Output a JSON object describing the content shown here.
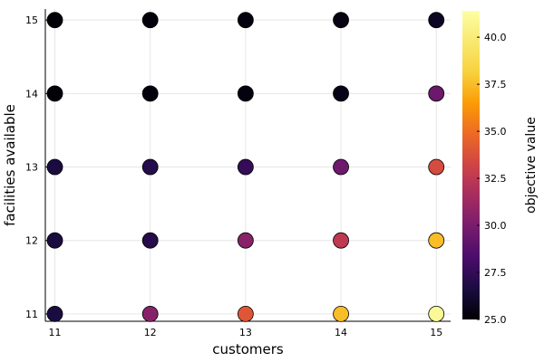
{
  "chart_data": {
    "type": "scatter",
    "title": "",
    "xlabel": "customers",
    "ylabel": "facilities available",
    "colorbar_label": "objective value",
    "xlim": [
      10.9,
      15.15
    ],
    "ylim": [
      10.9,
      15.15
    ],
    "xticks": [
      "11",
      "12",
      "13",
      "14",
      "15"
    ],
    "yticks": [
      "11",
      "12",
      "13",
      "14",
      "15"
    ],
    "clim": [
      25.0,
      41.4
    ],
    "cticks": [
      "25.0",
      "27.5",
      "30.0",
      "32.5",
      "35.0",
      "37.5",
      "40.0"
    ],
    "colormap": "inferno",
    "grid": true,
    "points": [
      {
        "x": 11,
        "y": 15,
        "value": 25.1
      },
      {
        "x": 12,
        "y": 15,
        "value": 25.2
      },
      {
        "x": 13,
        "y": 15,
        "value": 25.3
      },
      {
        "x": 14,
        "y": 15,
        "value": 25.4
      },
      {
        "x": 15,
        "y": 15,
        "value": 25.8
      },
      {
        "x": 11,
        "y": 14,
        "value": 25.1
      },
      {
        "x": 12,
        "y": 14,
        "value": 25.2
      },
      {
        "x": 13,
        "y": 14,
        "value": 25.3
      },
      {
        "x": 14,
        "y": 14,
        "value": 25.5
      },
      {
        "x": 15,
        "y": 14,
        "value": 29.5
      },
      {
        "x": 11,
        "y": 13,
        "value": 26.6
      },
      {
        "x": 12,
        "y": 13,
        "value": 27.0
      },
      {
        "x": 13,
        "y": 13,
        "value": 27.5
      },
      {
        "x": 14,
        "y": 13,
        "value": 29.6
      },
      {
        "x": 15,
        "y": 13,
        "value": 33.5
      },
      {
        "x": 11,
        "y": 12,
        "value": 26.6
      },
      {
        "x": 12,
        "y": 12,
        "value": 27.0
      },
      {
        "x": 13,
        "y": 12,
        "value": 30.5
      },
      {
        "x": 14,
        "y": 12,
        "value": 32.5
      },
      {
        "x": 15,
        "y": 12,
        "value": 37.5
      },
      {
        "x": 11,
        "y": 11,
        "value": 26.6
      },
      {
        "x": 12,
        "y": 11,
        "value": 30.5
      },
      {
        "x": 13,
        "y": 11,
        "value": 34.0
      },
      {
        "x": 14,
        "y": 11,
        "value": 37.5
      },
      {
        "x": 15,
        "y": 11,
        "value": 41.0
      }
    ]
  }
}
